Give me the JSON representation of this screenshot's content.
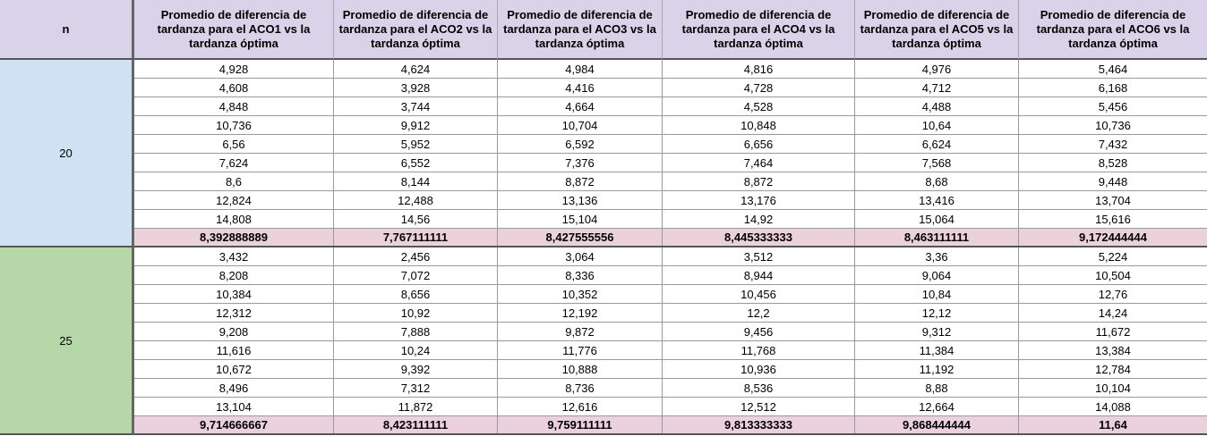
{
  "headers": {
    "n": "n",
    "aco": [
      "Promedio de diferencia de tardanza para el ACO1 vs la tardanza óptima",
      "Promedio de diferencia de tardanza para el ACO2 vs la tardanza óptima",
      "Promedio de diferencia de tardanza para el ACO3 vs la tardanza óptima",
      "Promedio de diferencia de tardanza para el ACO4 vs la tardanza óptima",
      "Promedio de diferencia de tardanza para el ACO5 vs la tardanza óptima",
      "Promedio de diferencia de tardanza para el ACO6 vs la tardanza óptima"
    ]
  },
  "groups": [
    {
      "n": "20",
      "rows": [
        [
          "4,928",
          "4,624",
          "4,984",
          "4,816",
          "4,976",
          "5,464"
        ],
        [
          "4,608",
          "3,928",
          "4,416",
          "4,728",
          "4,712",
          "6,168"
        ],
        [
          "4,848",
          "3,744",
          "4,664",
          "4,528",
          "4,488",
          "5,456"
        ],
        [
          "10,736",
          "9,912",
          "10,704",
          "10,848",
          "10,64",
          "10,736"
        ],
        [
          "6,56",
          "5,952",
          "6,592",
          "6,656",
          "6,624",
          "7,432"
        ],
        [
          "7,624",
          "6,552",
          "7,376",
          "7,464",
          "7,568",
          "8,528"
        ],
        [
          "8,6",
          "8,144",
          "8,872",
          "8,872",
          "8,68",
          "9,448"
        ],
        [
          "12,824",
          "12,488",
          "13,136",
          "13,176",
          "13,416",
          "13,704"
        ],
        [
          "14,808",
          "14,56",
          "15,104",
          "14,92",
          "15,064",
          "15,616"
        ]
      ],
      "average": [
        "8,392888889",
        "7,767111111",
        "8,427555556",
        "8,445333333",
        "8,463111111",
        "9,172444444"
      ]
    },
    {
      "n": "25",
      "rows": [
        [
          "3,432",
          "2,456",
          "3,064",
          "3,512",
          "3,36",
          "5,224"
        ],
        [
          "8,208",
          "7,072",
          "8,336",
          "8,944",
          "9,064",
          "10,504"
        ],
        [
          "10,384",
          "8,656",
          "10,352",
          "10,456",
          "10,84",
          "12,76"
        ],
        [
          "12,312",
          "10,92",
          "12,192",
          "12,2",
          "12,12",
          "14,24"
        ],
        [
          "9,208",
          "7,888",
          "9,872",
          "9,456",
          "9,312",
          "11,672"
        ],
        [
          "11,616",
          "10,24",
          "11,776",
          "11,768",
          "11,384",
          "13,384"
        ],
        [
          "10,672",
          "9,392",
          "10,888",
          "10,936",
          "11,192",
          "12,784"
        ],
        [
          "8,496",
          "7,312",
          "8,736",
          "8,536",
          "8,88",
          "10,104"
        ],
        [
          "13,104",
          "11,872",
          "12,616",
          "12,512",
          "12,664",
          "14,088"
        ]
      ],
      "average": [
        "9,714666667",
        "8,423111111",
        "9,759111111",
        "9,813333333",
        "9,868444444",
        "11,64"
      ]
    }
  ]
}
